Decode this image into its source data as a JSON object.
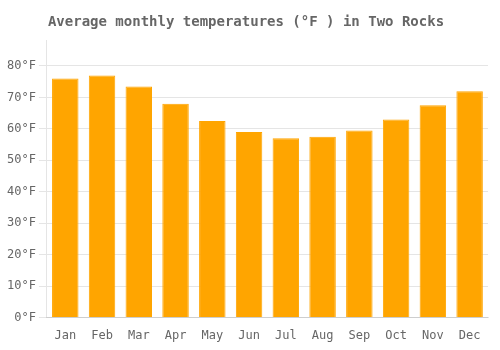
{
  "chart_data": {
    "type": "bar",
    "title": "Average monthly temperatures (°F ) in Two Rocks",
    "categories": [
      "Jan",
      "Feb",
      "Mar",
      "Apr",
      "May",
      "Jun",
      "Jul",
      "Aug",
      "Sep",
      "Oct",
      "Nov",
      "Dec"
    ],
    "values": [
      76,
      77,
      73.5,
      68,
      62.5,
      59,
      57,
      57.5,
      59.5,
      63,
      67.5,
      72
    ],
    "color": "#FFA500",
    "ylim": [
      0,
      88
    ],
    "yticks": [
      {
        "value": 0,
        "label": "0°F"
      },
      {
        "value": 10,
        "label": "10°F"
      },
      {
        "value": 20,
        "label": "20°F"
      },
      {
        "value": 30,
        "label": "30°F"
      },
      {
        "value": 40,
        "label": "40°F"
      },
      {
        "value": 50,
        "label": "50°F"
      },
      {
        "value": 60,
        "label": "60°F"
      },
      {
        "value": 70,
        "label": "70°F"
      },
      {
        "value": 80,
        "label": "80°F"
      }
    ],
    "grid": "y"
  }
}
